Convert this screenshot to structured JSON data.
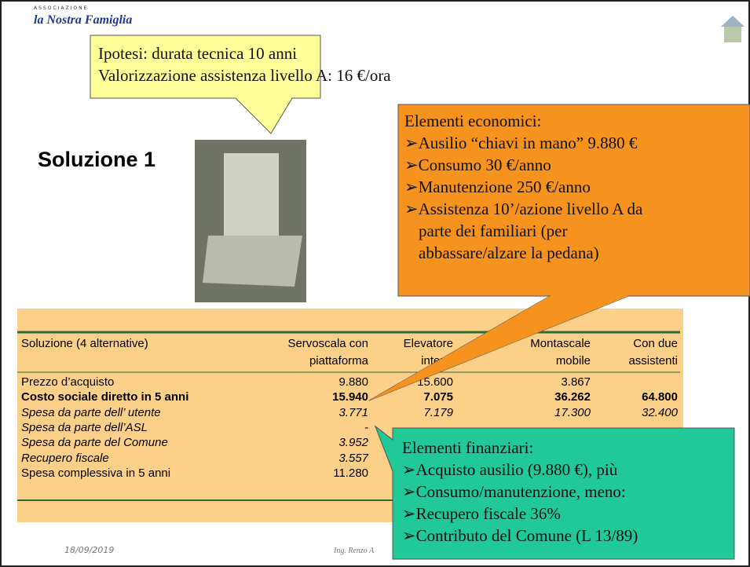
{
  "logo": {
    "small": "ASSOCIAZIONE",
    "name": "la Nostra Famiglia"
  },
  "hypothesis": {
    "lines": [
      "Ipotesi: durata tecnica 10 anni",
      "Valorizzazione assistenza livello A: 16 €/ora"
    ]
  },
  "title": "Soluzione 1",
  "economic": {
    "heading": "Elementi economici:",
    "items": [
      [
        "➢Ausilio “chiavi in mano” 9.880 €"
      ],
      [
        "➢Consumo 30 €/anno"
      ],
      [
        "➢Manutenzione 250 €/anno"
      ],
      [
        "➢Assistenza 10’/azione livello A da",
        "parte dei familiari (per",
        "abbassare/alzare la pedana)"
      ]
    ]
  },
  "table": {
    "header": [
      [
        "Soluzione (4 alternative)"
      ],
      [
        "Servoscala con",
        "piattaforma"
      ],
      [
        "Elevatore",
        "interni"
      ],
      [
        "Montascale",
        "mobile"
      ],
      [
        "Con due",
        "assistenti"
      ]
    ],
    "rows": [
      [
        "Prezzo d’acquisto",
        "9.880",
        "15.600",
        "3.867"
      ],
      [
        "Costo sociale diretto in 5 anni",
        "15.940",
        "7.075",
        "36.262",
        "64.800"
      ],
      [
        "Spesa da parte dell’ utente",
        "3.771",
        "7.179",
        "17.300",
        "32.400"
      ],
      [
        "Spesa da parte dell’ASL",
        "-"
      ],
      [
        "Spesa da parte del Comune",
        "3.952"
      ],
      [
        "Recupero fiscale",
        "3.557"
      ],
      [
        "Spesa complessiva in 5 anni",
        "11.280"
      ]
    ]
  },
  "financial": {
    "heading": "Elementi finanziari:",
    "items": [
      "➢Acquisto ausilio (9.880 €), più",
      "➢Consumo/manutenzione, meno:",
      "➢Recupero fiscale 36%",
      "➢Contributo del Comune (L 13/89)"
    ]
  },
  "footer": {
    "date": "18/09/2019",
    "author": "Ing. Renzo A"
  }
}
